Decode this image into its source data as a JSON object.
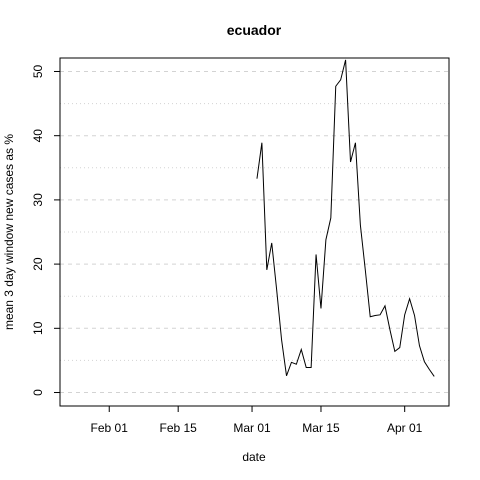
{
  "chart_data": {
    "type": "line",
    "title": "ecuador",
    "x_label": "date",
    "y_label": "mean  3  day window new cases as %",
    "x": [
      "Mar 02",
      "Mar 03",
      "Mar 04",
      "Mar 05",
      "Mar 06",
      "Mar 07",
      "Mar 08",
      "Mar 09",
      "Mar 10",
      "Mar 11",
      "Mar 12",
      "Mar 13",
      "Mar 14",
      "Mar 15",
      "Mar 16",
      "Mar 17",
      "Mar 18",
      "Mar 19",
      "Mar 20",
      "Mar 21",
      "Mar 22",
      "Mar 23",
      "Mar 24",
      "Mar 25",
      "Mar 26",
      "Mar 27",
      "Mar 28",
      "Mar 29",
      "Mar 30",
      "Mar 31",
      "Apr 01",
      "Apr 02",
      "Apr 03",
      "Apr 04",
      "Apr 05",
      "Apr 06",
      "Apr 07"
    ],
    "series": [
      {
        "name": "ecuador",
        "color": "#000000",
        "values": [
          33.3,
          38.9,
          19.1,
          23.3,
          16.0,
          8.2,
          2.6,
          4.7,
          4.4,
          6.7,
          3.9,
          3.9,
          21.5,
          13.1,
          23.8,
          27.2,
          47.7,
          48.7,
          51.8,
          35.9,
          38.9,
          26.1,
          19.1,
          11.8,
          12.0,
          12.1,
          13.5,
          9.8,
          6.4,
          7.0,
          12.1,
          14.6,
          12.0,
          7.3,
          4.8,
          3.6,
          2.5
        ]
      }
    ],
    "xlim": [
      "Jan 22",
      "Apr 10"
    ],
    "xticks": [
      "Feb 01",
      "Feb 15",
      "Mar 01",
      "Mar 15",
      "Apr 01"
    ],
    "ylim": [
      -2.1,
      52.1
    ],
    "yticks": [
      0,
      10,
      20,
      30,
      40,
      50
    ],
    "minor_yticks": [
      5,
      15,
      25,
      35,
      45
    ],
    "grid": true
  }
}
